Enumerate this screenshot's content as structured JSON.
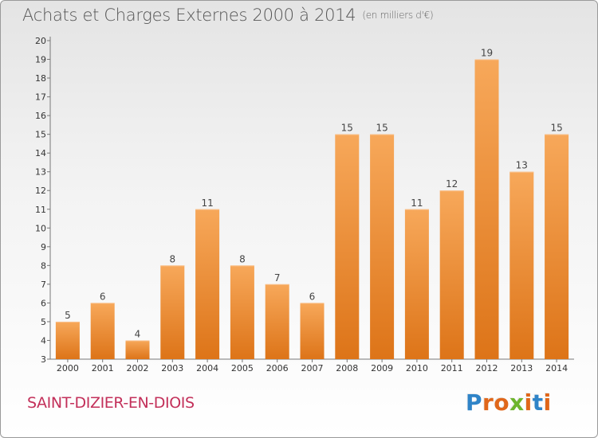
{
  "chart_data": {
    "type": "bar",
    "title": "Achats et Charges Externes 2000 à 2014",
    "unit_label": "(en milliers d'€)",
    "categories": [
      "2000",
      "2001",
      "2002",
      "2003",
      "2004",
      "2005",
      "2006",
      "2007",
      "2008",
      "2009",
      "2010",
      "2011",
      "2012",
      "2013",
      "2014"
    ],
    "values": [
      5,
      6,
      4,
      8,
      11,
      8,
      7,
      6,
      15,
      15,
      11,
      12,
      19,
      13,
      15
    ],
    "ylim": [
      3,
      20
    ],
    "yticks": [
      3,
      4,
      5,
      6,
      7,
      8,
      9,
      10,
      11,
      12,
      13,
      14,
      15,
      16,
      17,
      18,
      19,
      20
    ],
    "xlabel": "",
    "ylabel": "",
    "grid": false,
    "bar_color_top": "#f7a85a",
    "bar_color_bottom": "#dd7418"
  },
  "footer": {
    "place": "SAINT-DIZIER-EN-DIOIS",
    "brand_letters": [
      "P",
      "r",
      "o",
      "x",
      "i",
      "t",
      "i"
    ],
    "brand_colors": [
      "#2f84c8",
      "#e0671a",
      "#e0671a",
      "#6db52d",
      "#e0671a",
      "#2f84c8",
      "#e0671a"
    ]
  }
}
